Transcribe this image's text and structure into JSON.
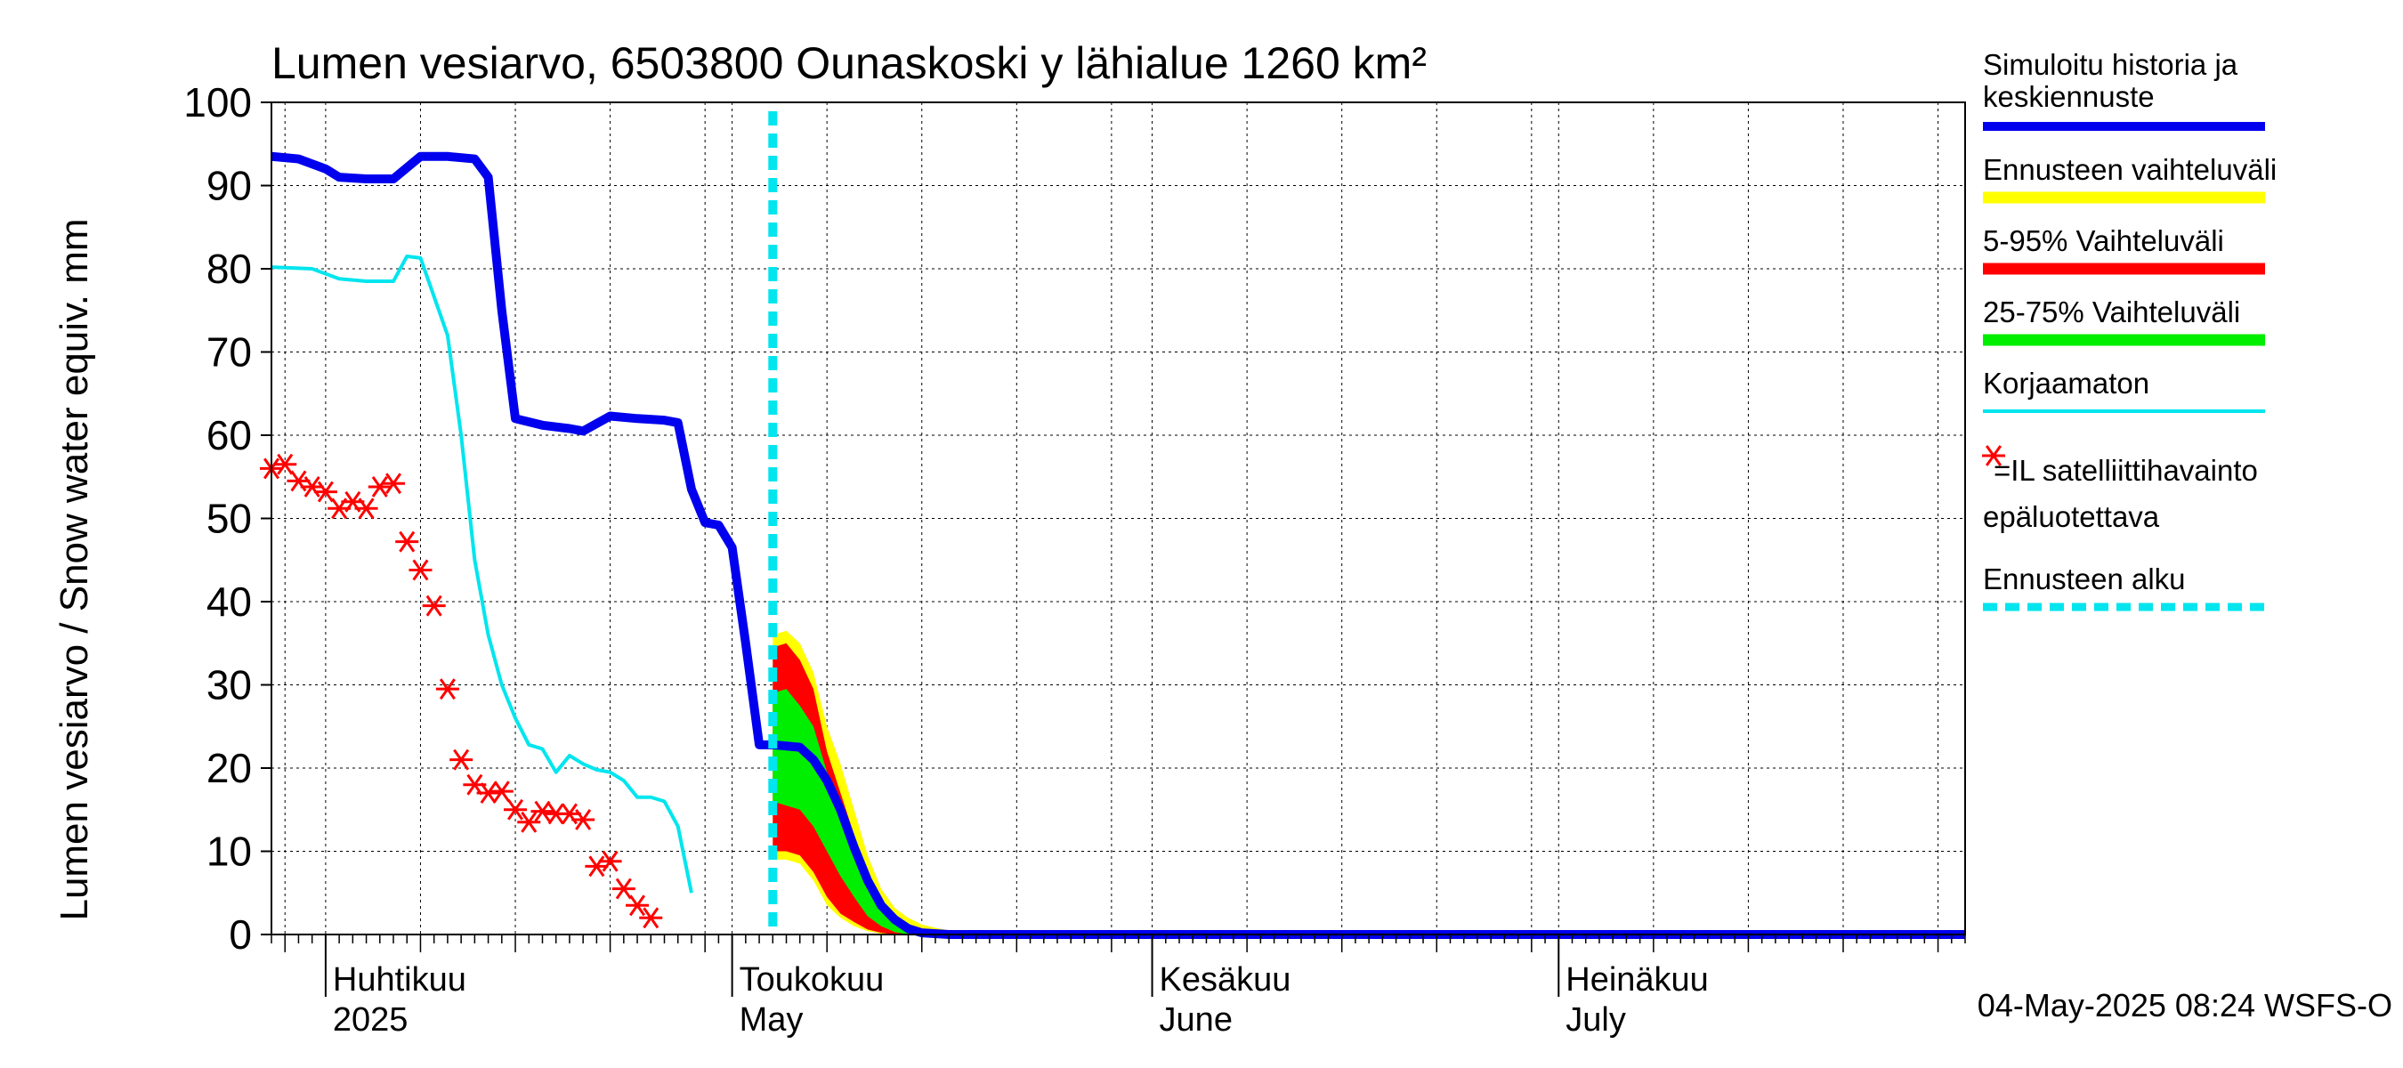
{
  "chart_data": {
    "type": "line",
    "title": "Lumen vesiarvo, 6503800 Ounaskoski y lähialue 1260 km²",
    "ylabel": "Lumen vesiarvo / Snow water equiv.    mm",
    "ylim": [
      0,
      100
    ],
    "yticks": [
      "0",
      "10",
      "20",
      "30",
      "40",
      "50",
      "60",
      "70",
      "80",
      "90",
      "100"
    ],
    "xlim": [
      "2025-03-28",
      "2025-07-31"
    ],
    "month_labels": [
      {
        "date": "2025-04-01",
        "line1": "Huhtikuu",
        "line2": "2025"
      },
      {
        "date": "2025-05-01",
        "line1": "Toukokuu",
        "line2": "May"
      },
      {
        "date": "2025-06-01",
        "line1": "Kesäkuu",
        "line2": "June"
      },
      {
        "date": "2025-07-01",
        "line1": "Heinäkuu",
        "line2": "July"
      }
    ],
    "forecast_start": "2025-05-04",
    "timestamp": "04-May-2025 08:24 WSFS-O",
    "legend": {
      "position": "right",
      "entries": [
        {
          "label": "Simuloitu historia ja",
          "label2": "keskiennuste",
          "color": "#0000ee",
          "kind": "thick-line"
        },
        {
          "label": "Ennusteen vaihteluväli",
          "color": "#ffff00",
          "kind": "band"
        },
        {
          "label": "5-95% Vaihteluväli",
          "color": "#ff0000",
          "kind": "band"
        },
        {
          "label": "25-75% Vaihteluväli",
          "color": "#00ee00",
          "kind": "band"
        },
        {
          "label": "Korjaamaton",
          "color": "#00e5ee",
          "kind": "line"
        },
        {
          "label": "=IL satelliittihavainto",
          "label2": "epäluotettava",
          "color": "#ff0000",
          "kind": "star"
        },
        {
          "label": "Ennusteen alku",
          "color": "#00e5ee",
          "kind": "dashed"
        }
      ]
    },
    "series": [
      {
        "name": "Simuloitu historia ja keskiennuste",
        "color": "#0000ee",
        "points": [
          [
            "2025-03-28",
            93.5
          ],
          [
            "2025-03-30",
            93.2
          ],
          [
            "2025-04-01",
            92.0
          ],
          [
            "2025-04-02",
            91.0
          ],
          [
            "2025-04-04",
            90.8
          ],
          [
            "2025-04-06",
            90.8
          ],
          [
            "2025-04-08",
            93.5
          ],
          [
            "2025-04-10",
            93.5
          ],
          [
            "2025-04-12",
            93.2
          ],
          [
            "2025-04-13",
            91.0
          ],
          [
            "2025-04-14",
            75.0
          ],
          [
            "2025-04-15",
            62.0
          ],
          [
            "2025-04-17",
            61.2
          ],
          [
            "2025-04-19",
            60.8
          ],
          [
            "2025-04-20",
            60.5
          ],
          [
            "2025-04-22",
            62.3
          ],
          [
            "2025-04-24",
            62.0
          ],
          [
            "2025-04-26",
            61.8
          ],
          [
            "2025-04-27",
            61.5
          ],
          [
            "2025-04-28",
            53.5
          ],
          [
            "2025-04-29",
            49.5
          ],
          [
            "2025-04-30",
            49.2
          ],
          [
            "2025-05-01",
            46.5
          ],
          [
            "2025-05-02",
            35.0
          ],
          [
            "2025-05-03",
            22.8
          ],
          [
            "2025-05-04",
            22.8
          ],
          [
            "2025-05-06",
            22.5
          ],
          [
            "2025-05-07",
            21.0
          ],
          [
            "2025-05-08",
            18.5
          ],
          [
            "2025-05-09",
            15.0
          ],
          [
            "2025-05-10",
            10.5
          ],
          [
            "2025-05-11",
            6.5
          ],
          [
            "2025-05-12",
            3.5
          ],
          [
            "2025-05-13",
            1.8
          ],
          [
            "2025-05-14",
            0.7
          ],
          [
            "2025-05-15",
            0.2
          ],
          [
            "2025-05-17",
            0.0
          ],
          [
            "2025-07-31",
            0.0
          ]
        ]
      },
      {
        "name": "Korjaamaton",
        "color": "#00e5ee",
        "points": [
          [
            "2025-03-28",
            80.2
          ],
          [
            "2025-03-31",
            80.0
          ],
          [
            "2025-04-02",
            78.8
          ],
          [
            "2025-04-04",
            78.5
          ],
          [
            "2025-04-06",
            78.5
          ],
          [
            "2025-04-07",
            81.5
          ],
          [
            "2025-04-08",
            81.3
          ],
          [
            "2025-04-10",
            72.0
          ],
          [
            "2025-04-11",
            60.0
          ],
          [
            "2025-04-12",
            45.0
          ],
          [
            "2025-04-13",
            36.0
          ],
          [
            "2025-04-14",
            30.0
          ],
          [
            "2025-04-15",
            26.0
          ],
          [
            "2025-04-16",
            22.8
          ],
          [
            "2025-04-17",
            22.3
          ],
          [
            "2025-04-18",
            19.5
          ],
          [
            "2025-04-19",
            21.5
          ],
          [
            "2025-04-20",
            20.5
          ],
          [
            "2025-04-21",
            19.8
          ],
          [
            "2025-04-22",
            19.5
          ],
          [
            "2025-04-23",
            18.5
          ],
          [
            "2025-04-24",
            16.5
          ],
          [
            "2025-04-25",
            16.5
          ],
          [
            "2025-04-26",
            16.0
          ],
          [
            "2025-04-27",
            13.0
          ],
          [
            "2025-04-28",
            5.0
          ]
        ]
      },
      {
        "name": "=IL satelliittihavainto epäluotettava",
        "color": "#ff0000",
        "marker": "star",
        "points": [
          [
            "2025-03-28",
            56.0
          ],
          [
            "2025-03-29",
            56.5
          ],
          [
            "2025-03-30",
            54.5
          ],
          [
            "2025-03-31",
            53.8
          ],
          [
            "2025-04-01",
            53.2
          ],
          [
            "2025-04-02",
            51.2
          ],
          [
            "2025-04-03",
            52.0
          ],
          [
            "2025-04-04",
            51.2
          ],
          [
            "2025-04-05",
            53.8
          ],
          [
            "2025-04-06",
            54.2
          ],
          [
            "2025-04-07",
            47.2
          ],
          [
            "2025-04-08",
            43.8
          ],
          [
            "2025-04-09",
            39.5
          ],
          [
            "2025-04-10",
            29.5
          ],
          [
            "2025-04-11",
            21.0
          ],
          [
            "2025-04-12",
            18.0
          ],
          [
            "2025-04-13",
            17.0
          ],
          [
            "2025-04-14",
            17.2
          ],
          [
            "2025-04-15",
            15.0
          ],
          [
            "2025-04-16",
            13.5
          ],
          [
            "2025-04-17",
            14.8
          ],
          [
            "2025-04-18",
            14.5
          ],
          [
            "2025-04-19",
            14.5
          ],
          [
            "2025-04-20",
            13.8
          ],
          [
            "2025-04-21",
            8.2
          ],
          [
            "2025-04-22",
            8.8
          ],
          [
            "2025-04-23",
            5.5
          ],
          [
            "2025-04-24",
            3.5
          ],
          [
            "2025-04-25",
            2.0
          ]
        ]
      }
    ],
    "bands": [
      {
        "name": "Ennusteen vaihteluväli",
        "color": "#ffff00",
        "x": [
          "2025-05-04",
          "2025-05-05",
          "2025-05-06",
          "2025-05-07",
          "2025-05-08",
          "2025-05-09",
          "2025-05-10",
          "2025-05-11",
          "2025-05-12",
          "2025-05-13",
          "2025-05-14",
          "2025-05-15",
          "2025-05-16",
          "2025-05-17",
          "2025-05-18",
          "2025-05-20"
        ],
        "upper": [
          36.0,
          36.5,
          35.0,
          31.5,
          25.0,
          20.5,
          15.0,
          9.5,
          5.5,
          3.2,
          2.0,
          1.2,
          0.8,
          0.5,
          0.2,
          0.0
        ],
        "lower": [
          9.0,
          9.0,
          8.5,
          6.5,
          3.5,
          2.0,
          1.0,
          0.4,
          0.1,
          0.0,
          0.0,
          0.0,
          0.0,
          0.0,
          0.0,
          0.0
        ]
      },
      {
        "name": "5-95% Vaihteluväli",
        "color": "#ff0000",
        "x": [
          "2025-05-04",
          "2025-05-05",
          "2025-05-06",
          "2025-05-07",
          "2025-05-08",
          "2025-05-09",
          "2025-05-10",
          "2025-05-11",
          "2025-05-12",
          "2025-05-13",
          "2025-05-14",
          "2025-05-15",
          "2025-05-16"
        ],
        "upper": [
          34.5,
          35.0,
          33.0,
          29.5,
          22.0,
          17.0,
          12.0,
          7.0,
          4.0,
          2.0,
          0.8,
          0.2,
          0.0
        ],
        "lower": [
          10.0,
          10.0,
          9.5,
          7.5,
          4.5,
          2.5,
          1.5,
          0.6,
          0.2,
          0.0,
          0.0,
          0.0,
          0.0
        ]
      },
      {
        "name": "25-75% Vaihteluväli",
        "color": "#00ee00",
        "x": [
          "2025-05-04",
          "2025-05-05",
          "2025-05-06",
          "2025-05-07",
          "2025-05-08",
          "2025-05-09",
          "2025-05-10",
          "2025-05-11",
          "2025-05-12",
          "2025-05-13",
          "2025-05-14",
          "2025-05-15"
        ],
        "upper": [
          29.0,
          29.5,
          27.5,
          25.0,
          19.5,
          14.5,
          10.0,
          6.0,
          3.0,
          1.5,
          0.5,
          0.0
        ],
        "lower": [
          16.0,
          15.5,
          15.0,
          13.0,
          10.0,
          7.0,
          4.5,
          2.2,
          1.0,
          0.3,
          0.0,
          0.0
        ]
      }
    ]
  }
}
